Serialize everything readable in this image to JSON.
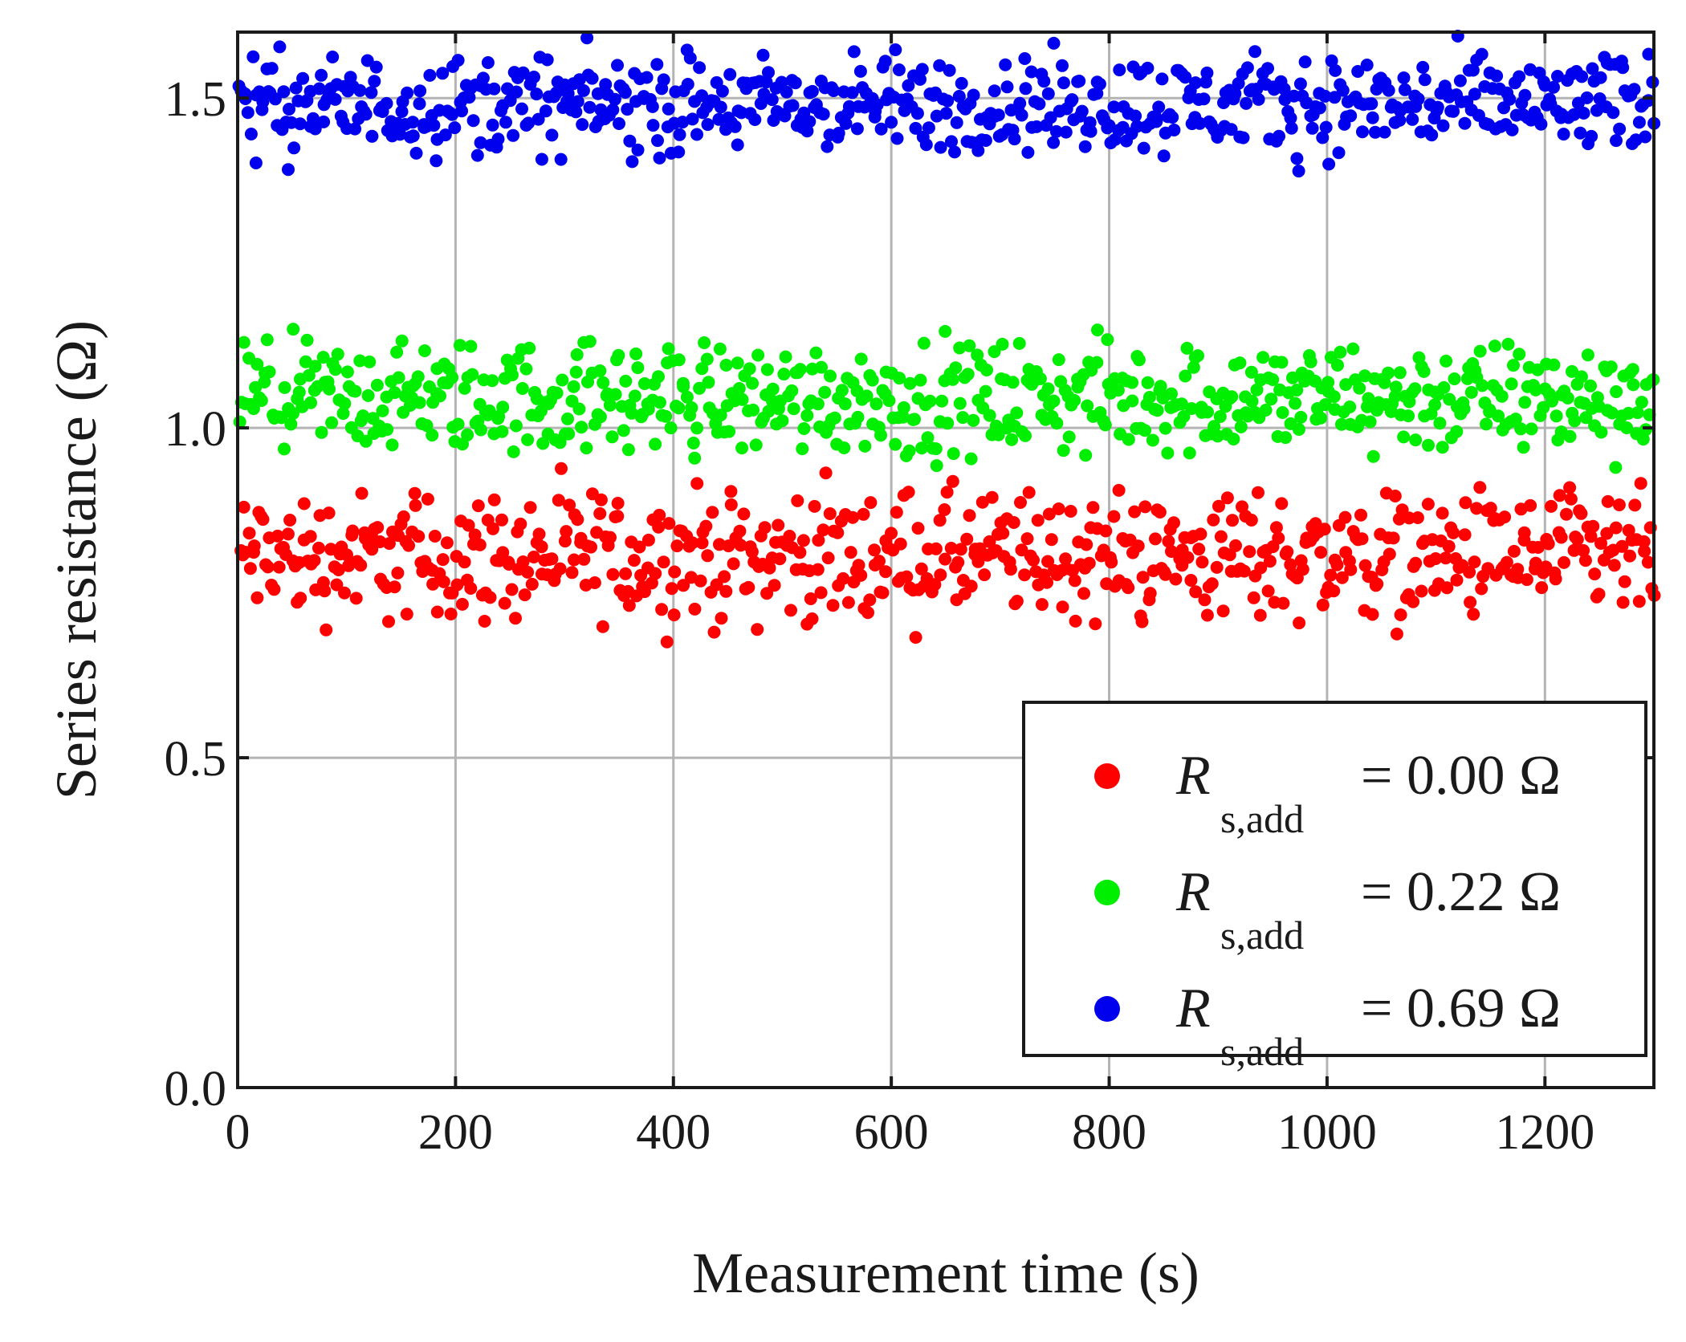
{
  "chart_data": {
    "type": "scatter",
    "title": "",
    "xlabel": "Measurement time (s)",
    "ylabel": "Series resistance (Ω)",
    "xlim": [
      0,
      1300
    ],
    "ylim": [
      0.0,
      1.6
    ],
    "xticks": [
      0,
      200,
      400,
      600,
      800,
      1000,
      1200
    ],
    "xtick_labels": [
      "0",
      "200",
      "400",
      "600",
      "800",
      "1000",
      "1200"
    ],
    "yticks": [
      0.0,
      0.5,
      1.0,
      1.5
    ],
    "ytick_labels": [
      "0.0",
      "0.5",
      "1.0",
      "1.5"
    ],
    "grid": true,
    "legend_position": "bottom-right",
    "sampling_interval_s": 2,
    "series": [
      {
        "name": "R_s,add = 0.00 Ω",
        "legend_symbol": "R",
        "legend_subscript": "s,add",
        "legend_value": "= 0.00 Ω",
        "color": "#ff0000",
        "y_min": 0.66,
        "y_max": 0.95,
        "y_mean": 0.8
      },
      {
        "name": "R_s,add = 0.22 Ω",
        "legend_symbol": "R",
        "legend_subscript": "s,add",
        "legend_value": "= 0.22 Ω",
        "color": "#00ee00",
        "y_min": 0.92,
        "y_max": 1.17,
        "y_mean": 1.03
      },
      {
        "name": "R_s,add = 0.69 Ω",
        "legend_symbol": "R",
        "legend_subscript": "s,add",
        "legend_value": "= 0.69 Ω",
        "color": "#0000ee",
        "y_min": 1.38,
        "y_max": 1.6,
        "y_mean": 1.51
      }
    ]
  }
}
